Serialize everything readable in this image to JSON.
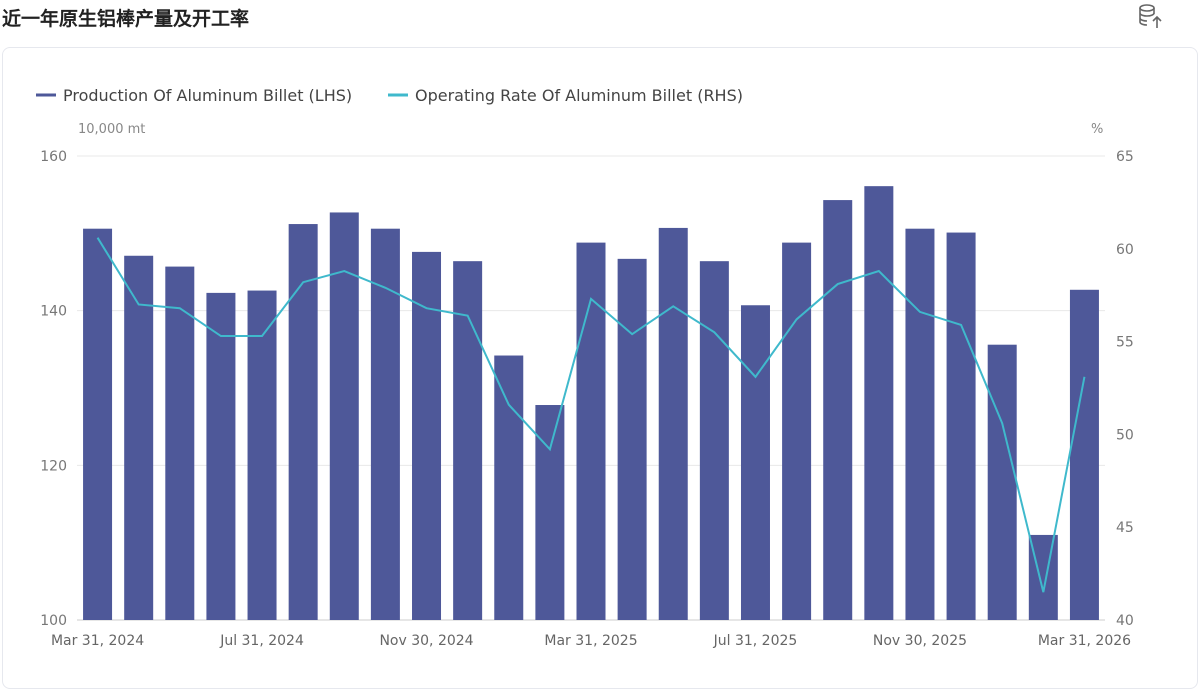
{
  "header": {
    "title": "近一年原生铝棒产量及开工率",
    "export_icon": "database-export-icon"
  },
  "chart_data": {
    "type": "bar+line",
    "legend_position": "top-left",
    "grid": true,
    "x_tick_labels": [
      "Mar 31, 2024",
      "Jul 31, 2024",
      "Nov 30, 2024",
      "Mar 31, 2025",
      "Jul 31, 2025",
      "Nov 30, 2025",
      "Mar 31, 2026"
    ],
    "x_tick_every": 4,
    "left_axis": {
      "unit": "10,000 mt",
      "ylim": [
        100,
        160
      ],
      "ticks": [
        100,
        120,
        140,
        160
      ]
    },
    "right_axis": {
      "unit": "%",
      "ylim": [
        40,
        65
      ],
      "ticks": [
        40,
        45,
        50,
        55,
        60,
        65
      ]
    },
    "series": [
      {
        "name": "Production Of Aluminum Billet (LHS)",
        "type": "bar",
        "axis": "left",
        "color": "#4e5899",
        "values": [
          150.6,
          147.1,
          145.7,
          142.3,
          142.6,
          151.2,
          152.7,
          150.6,
          147.6,
          146.4,
          134.2,
          127.8,
          148.8,
          146.7,
          150.7,
          146.4,
          140.7,
          148.8,
          154.3,
          156.1,
          150.6,
          150.1,
          135.6,
          111.0,
          142.7
        ]
      },
      {
        "name": "Operating Rate Of Aluminum Billet (RHS)",
        "type": "line",
        "axis": "right",
        "color": "#3fb9cc",
        "values": [
          60.6,
          57.0,
          56.8,
          55.3,
          55.3,
          58.2,
          58.8,
          57.9,
          56.8,
          56.4,
          51.6,
          49.2,
          57.3,
          55.4,
          56.9,
          55.5,
          53.1,
          56.2,
          58.1,
          58.8,
          56.6,
          55.9,
          50.6,
          41.5,
          53.1
        ]
      }
    ]
  }
}
